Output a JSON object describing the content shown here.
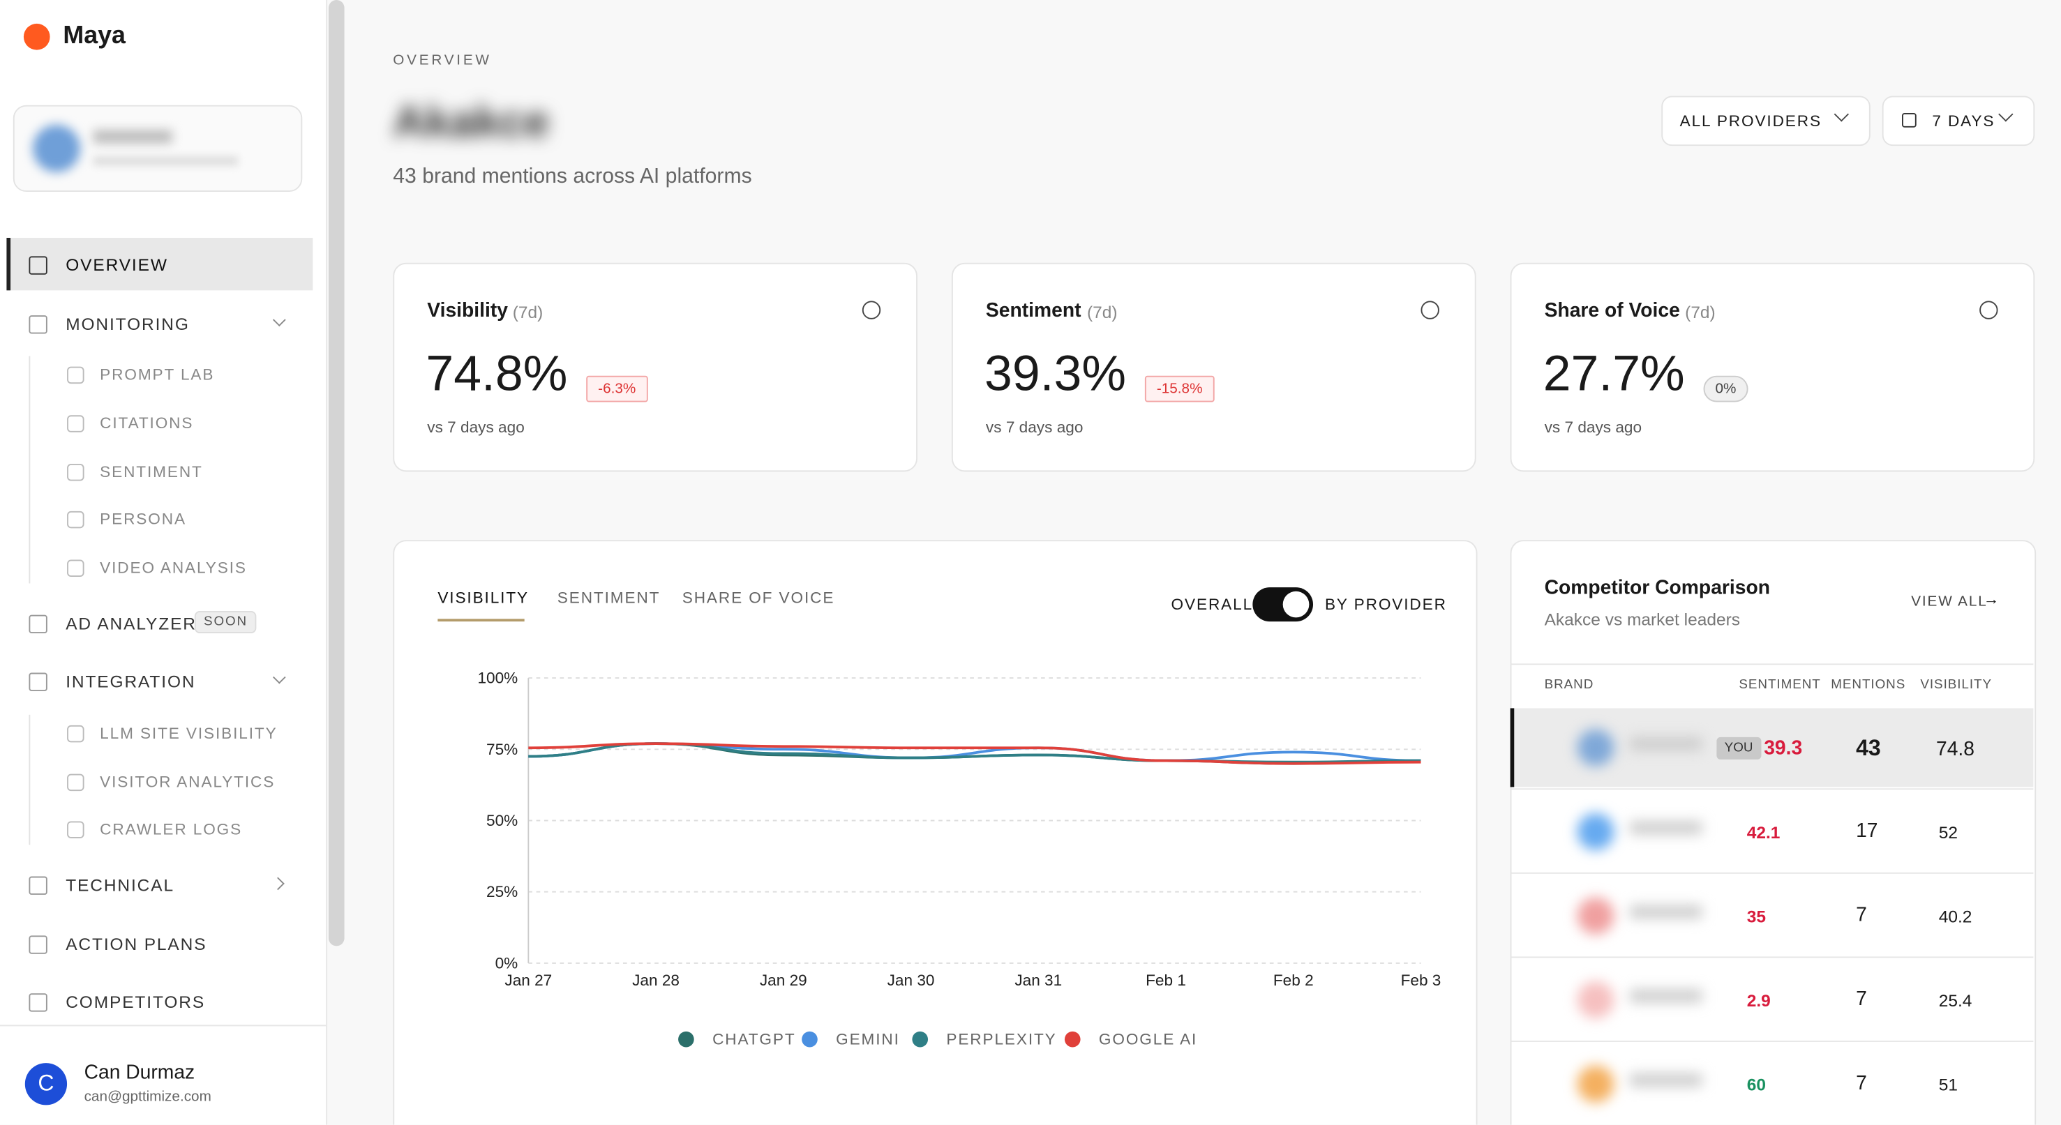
{
  "sidebar": {
    "brand": "Maya",
    "nav": [
      {
        "label": "OVERVIEW"
      },
      {
        "label": "MONITORING",
        "children": [
          "PROMPT LAB",
          "CITATIONS",
          "SENTIMENT",
          "PERSONA",
          "VIDEO ANALYSIS"
        ]
      },
      {
        "label": "AD ANALYZER",
        "badge": "SOON"
      },
      {
        "label": "INTEGRATION",
        "children": [
          "LLM SITE VISIBILITY",
          "VISITOR ANALYTICS",
          "CRAWLER LOGS"
        ]
      },
      {
        "label": "TECHNICAL"
      },
      {
        "label": "ACTION PLANS"
      },
      {
        "label": "COMPETITORS"
      }
    ],
    "user": {
      "initial": "C",
      "name": "Can Durmaz",
      "email": "can@gpttimize.com"
    }
  },
  "header": {
    "eyebrow": "OVERVIEW",
    "title": "Akakce",
    "subtitle": "43 brand mentions across AI platforms",
    "filters": [
      "ALL PROVIDERS",
      "7 DAYS"
    ]
  },
  "kpis": [
    {
      "label": "Visibility",
      "period": "(7d)",
      "value": "74.8%",
      "change": "-6.3%",
      "note": "vs 7 days ago"
    },
    {
      "label": "Sentiment",
      "period": "(7d)",
      "value": "39.3%",
      "change": "-15.8%",
      "note": "vs 7 days ago"
    },
    {
      "label": "Share of Voice",
      "period": "(7d)",
      "value": "27.7%",
      "change": "0%",
      "note": "vs 7 days ago"
    }
  ],
  "chart_tabs": [
    "VISIBILITY",
    "SENTIMENT",
    "SHARE OF VOICE"
  ],
  "toggle": [
    "OVERALL",
    "BY PROVIDER"
  ],
  "chart_data": {
    "type": "line",
    "categories": [
      "Jan 27",
      "Jan 28",
      "Jan 29",
      "Jan 30",
      "Jan 31",
      "Feb 1",
      "Feb 2",
      "Feb 3"
    ],
    "series": [
      {
        "name": "CHATGPT",
        "color": "#2b6f6a",
        "values": [
          72.5,
          77,
          73,
          72,
          73,
          71,
          70,
          71
        ]
      },
      {
        "name": "GEMINI",
        "color": "#4a8fe0",
        "values": [
          72.5,
          77,
          75,
          72,
          75.5,
          71,
          74,
          71
        ]
      },
      {
        "name": "PERPLEXITY",
        "color": "#2f7f86",
        "values": [
          72.5,
          77,
          73.5,
          72,
          73,
          71,
          70.5,
          71
        ]
      },
      {
        "name": "GOOGLE AI",
        "color": "#e0403a",
        "values": [
          75.5,
          77,
          76,
          75.5,
          75.5,
          71,
          70,
          70.5
        ]
      }
    ],
    "ylim": [
      0,
      100
    ],
    "yticks": [
      {
        "value": 0,
        "label": "0%"
      },
      {
        "value": 25,
        "label": "25%"
      },
      {
        "value": 50,
        "label": "50%"
      },
      {
        "value": 75,
        "label": "75%"
      },
      {
        "value": 100,
        "label": "100%"
      }
    ],
    "grid": true
  },
  "competitors": {
    "title": "Competitor Comparison",
    "subtitle": "Akakce vs market leaders",
    "link": "VIEW ALL",
    "columns": [
      "BRAND",
      "SENTIMENT",
      "MENTIONS",
      "VISIBILITY"
    ],
    "you": "YOU",
    "rows": [
      [
        "39.3",
        "43",
        "74.8"
      ],
      [
        "42.1",
        "17",
        "52"
      ],
      [
        "35",
        "7",
        "40.2"
      ],
      [
        "2.9",
        "7",
        "25.4"
      ],
      [
        "60",
        "7",
        "51"
      ]
    ]
  }
}
